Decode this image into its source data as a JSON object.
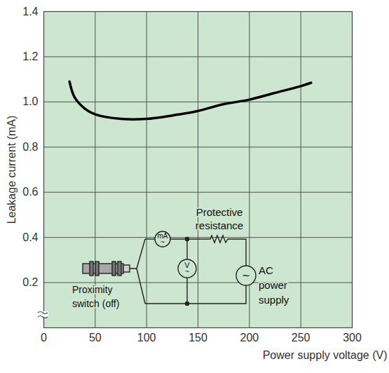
{
  "chart_data": {
    "type": "line",
    "xlabel": "Power supply voltage (V)",
    "ylabel": "Leakage current (mA)",
    "x": [
      25,
      30,
      40,
      50,
      75,
      100,
      125,
      150,
      175,
      200,
      225,
      250,
      260
    ],
    "values": [
      1.09,
      1.02,
      0.97,
      0.945,
      0.925,
      0.925,
      0.94,
      0.96,
      0.99,
      1.01,
      1.04,
      1.07,
      1.085
    ],
    "color": "#000000",
    "xlim": [
      0,
      300
    ],
    "xticks": [
      0,
      50,
      100,
      150,
      200,
      250,
      300
    ],
    "ylim": [
      0,
      1.4
    ],
    "yticks": [
      0.2,
      0.4,
      0.6,
      0.8,
      {
        "value": 1,
        "label": "1.0"
      },
      1.2,
      1.4
    ],
    "grid": true,
    "annotations": [
      {
        "lines": [
          "Protective",
          "resistance"
        ]
      },
      {
        "lines": [
          "Proximity",
          "switch (off)"
        ]
      },
      {
        "lines": [
          "AC",
          "power",
          "supply"
        ]
      },
      {
        "lines": [
          "mA",
          "~"
        ]
      },
      {
        "lines": [
          "V",
          "~"
        ]
      },
      {
        "lines": [
          "~"
        ]
      }
    ]
  }
}
